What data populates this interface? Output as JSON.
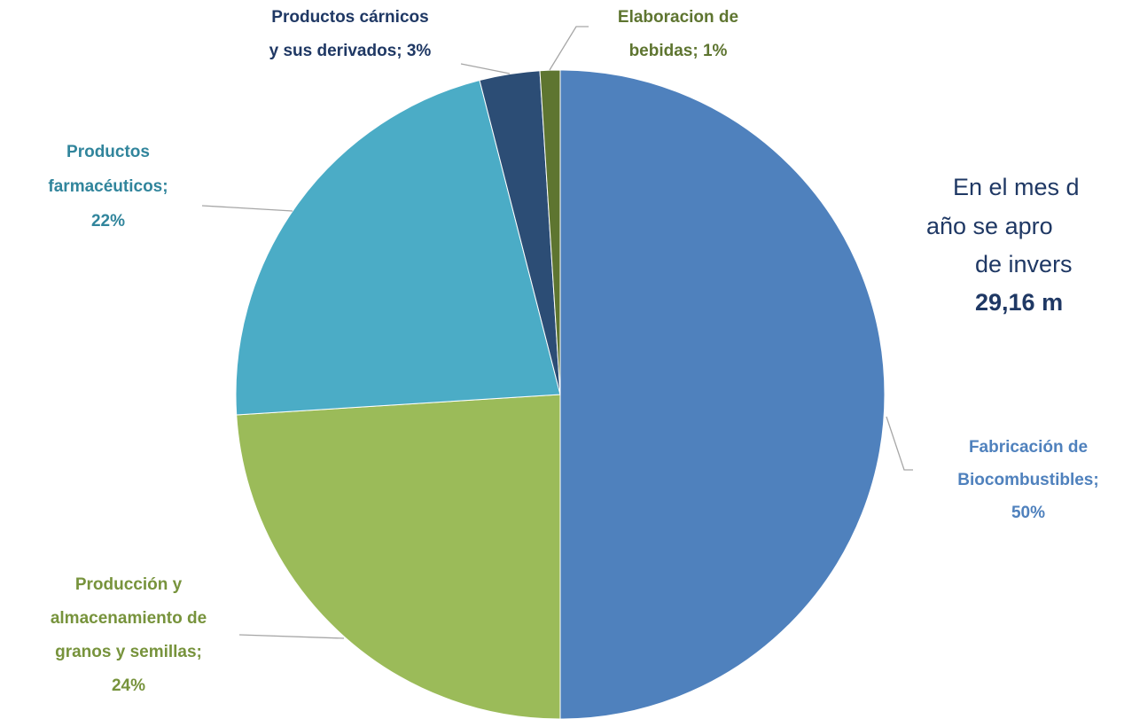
{
  "chart_data": {
    "type": "pie",
    "categories": [
      "Fabricación de Biocombustibles",
      "Producción y almacenamiento de granos y semillas",
      "Productos farmacéuticos",
      "Productos cárnicos y sus derivados",
      "Elaboracion de bebidas"
    ],
    "values": [
      50,
      24,
      22,
      3,
      1
    ],
    "value_labels": [
      "Fabricación de Biocombustibles; 50%",
      "Producción y almacenamiento de granos y semillas; 24%",
      "Productos farmacéuticos; 22%",
      "Productos cárnicos y sus derivados; 3%",
      "Elaboracion de bebidas; 1%"
    ],
    "colors": [
      "#4F81BD",
      "#9BBB59",
      "#4BACC6",
      "#2C4D75",
      "#5E7530"
    ],
    "label_colors": [
      "#4F81BD",
      "#77933C",
      "#31859C",
      "#1F3864",
      "#5E7530"
    ],
    "annotation": [
      "En el mes d",
      "año se apro",
      "de invers",
      "29,16 m"
    ]
  }
}
